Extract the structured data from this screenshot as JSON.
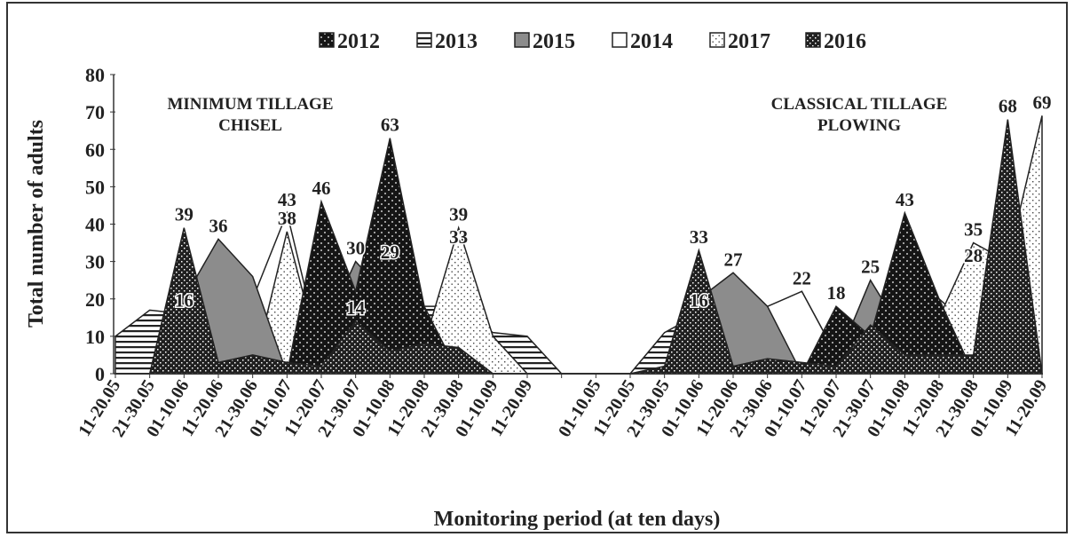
{
  "chart_data": {
    "type": "area",
    "xlabel": "Monitoring period (at ten days)",
    "ylabel": "Total number of adults",
    "annotations": [
      {
        "lines": [
          "MINIMUM TILLAGE",
          "CHISEL"
        ]
      },
      {
        "lines": [
          "CLASSICAL TILLAGE",
          "PLOWING"
        ]
      }
    ],
    "categories": [
      "11-20.05",
      "21-30.05",
      "01-10.06",
      "11-20.06",
      "21-30.06",
      "01-10.07",
      "11-20.07",
      "21-30.07",
      "01-10.08",
      "11-20.08",
      "21-30.08",
      "01-10.09",
      "11-20.09",
      null,
      "01-10.05",
      "11-20.05",
      "21-30.05",
      "01-10.06",
      "11-20.06",
      "21-30.06",
      "01-10.07",
      "11-20.07",
      "21-30.07",
      "01-10.08",
      "11-20.08",
      "21-30.08",
      "01-10.09",
      "11-20.09"
    ],
    "ylim": [
      0,
      80
    ],
    "yticks": [
      0,
      10,
      20,
      30,
      40,
      50,
      60,
      70,
      80
    ],
    "legend": "top",
    "series": [
      {
        "name": "2012",
        "color": "#151515",
        "pattern": "dots",
        "values": [
          0,
          0,
          0,
          0,
          0,
          0,
          46,
          22,
          63,
          18,
          0,
          0,
          0,
          0,
          0,
          0,
          0,
          0,
          0,
          0,
          0,
          18,
          10,
          43,
          20,
          0,
          0,
          0
        ],
        "value_labels": [
          null,
          null,
          null,
          null,
          null,
          null,
          "46",
          null,
          "63",
          null,
          null,
          null,
          null,
          null,
          null,
          null,
          null,
          null,
          null,
          null,
          null,
          "18",
          null,
          "43",
          null,
          null,
          null,
          null
        ]
      },
      {
        "name": "2013",
        "color": "#222222",
        "pattern": "hlines",
        "values": [
          10,
          17,
          16,
          19,
          20,
          22,
          8,
          20,
          20,
          18,
          18,
          11,
          10,
          0,
          0,
          0,
          11,
          16,
          15,
          17,
          22,
          5,
          5,
          8,
          12,
          28,
          20,
          0
        ],
        "value_labels": [
          null,
          null,
          "16",
          null,
          null,
          null,
          null,
          null,
          null,
          null,
          null,
          null,
          null,
          null,
          null,
          null,
          null,
          "16",
          null,
          null,
          "22",
          null,
          null,
          null,
          null,
          "28",
          null,
          null
        ]
      },
      {
        "name": "2015",
        "color": "#8c8c8c",
        "pattern": "solid",
        "values": [
          0,
          0,
          20,
          36,
          26,
          0,
          10,
          30,
          20,
          0,
          0,
          0,
          0,
          0,
          0,
          0,
          0,
          20,
          27,
          18,
          0,
          3,
          25,
          10,
          0,
          0,
          0,
          0
        ],
        "value_labels": [
          null,
          null,
          null,
          "36",
          null,
          null,
          null,
          "30",
          null,
          null,
          null,
          null,
          null,
          null,
          null,
          null,
          null,
          null,
          "27",
          null,
          null,
          null,
          "25",
          null,
          null,
          null,
          null,
          null
        ]
      },
      {
        "name": "2014",
        "color": "#ffffff",
        "pattern": "solid",
        "values": [
          0,
          0,
          0,
          0,
          20,
          43,
          5,
          20,
          29,
          8,
          33,
          0,
          0,
          0,
          0,
          0,
          0,
          0,
          0,
          18,
          22,
          5,
          0,
          0,
          20,
          12,
          0,
          0
        ],
        "value_labels": [
          null,
          null,
          null,
          null,
          null,
          "43",
          null,
          null,
          "29",
          null,
          "33",
          null,
          null,
          null,
          null,
          null,
          null,
          null,
          null,
          null,
          "22",
          null,
          null,
          null,
          null,
          null,
          null,
          null
        ]
      },
      {
        "name": "2017",
        "color": "#444444",
        "pattern": "sparse",
        "values": [
          0,
          0,
          0,
          0,
          0,
          38,
          3,
          8,
          25,
          8,
          39,
          10,
          0,
          0,
          0,
          0,
          0,
          0,
          0,
          0,
          0,
          0,
          0,
          0,
          15,
          35,
          30,
          69
        ],
        "value_labels": [
          null,
          null,
          null,
          null,
          null,
          "38",
          null,
          null,
          null,
          null,
          "39",
          null,
          null,
          null,
          null,
          null,
          null,
          null,
          null,
          null,
          null,
          null,
          null,
          null,
          null,
          "35",
          null,
          "69"
        ]
      },
      {
        "name": "2016",
        "color": "#202020",
        "pattern": "checker",
        "values": [
          0,
          0,
          39,
          3,
          5,
          3,
          2,
          14,
          6,
          8,
          7,
          0,
          0,
          0,
          0,
          0,
          2,
          33,
          2,
          4,
          3,
          2,
          13,
          5,
          5,
          5,
          68,
          0
        ],
        "value_labels": [
          null,
          null,
          "39",
          null,
          null,
          null,
          null,
          "14",
          null,
          null,
          null,
          null,
          null,
          null,
          null,
          null,
          null,
          "33",
          null,
          null,
          null,
          null,
          null,
          null,
          null,
          null,
          "68",
          null
        ]
      }
    ]
  }
}
